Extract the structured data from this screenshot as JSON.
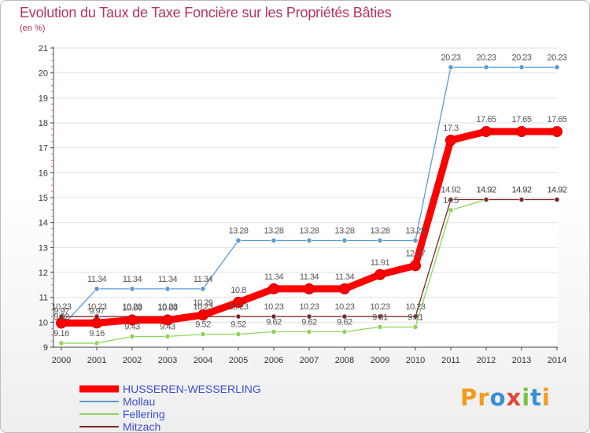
{
  "chart_data": {
    "type": "line",
    "title": "Evolution du Taux de Taxe Foncière sur les Propriétés Bâties",
    "unit_label": "(en %)",
    "x": [
      "2000",
      "2001",
      "2002",
      "2003",
      "2004",
      "2005",
      "2006",
      "2007",
      "2008",
      "2009",
      "2010",
      "2011",
      "2012",
      "2013",
      "2014"
    ],
    "ylim": [
      9,
      21
    ],
    "yticks": [
      "9",
      "10",
      "11",
      "12",
      "13",
      "14",
      "15",
      "16",
      "17",
      "18",
      "19",
      "20",
      "21"
    ],
    "series": [
      {
        "name": "HUSSEREN-WESSERLING",
        "color": "#ff0000",
        "values": [
          9.97,
          9.97,
          10.09,
          10.09,
          10.29,
          10.8,
          11.34,
          11.34,
          11.34,
          11.91,
          12.27,
          17.3,
          17.65,
          17.65,
          17.65
        ],
        "labels": [
          "9.97",
          "9.97",
          "10.09",
          "10.09",
          "10.29",
          "10.8",
          "11.34",
          "11.34",
          "11.34",
          "11.91",
          "12.27",
          "17.3",
          "17.65",
          "17.65",
          "17.65"
        ]
      },
      {
        "name": "Mollau",
        "color": "#5b9bd5",
        "values": [
          9.82,
          11.34,
          11.34,
          11.34,
          11.34,
          13.28,
          13.28,
          13.28,
          13.28,
          13.28,
          13.28,
          20.23,
          20.23,
          20.23,
          20.23
        ],
        "labels": [
          "9.82",
          "11.34",
          "11.34",
          "11.34",
          "11.34",
          "13.28",
          "13.28",
          "13.28",
          "13.28",
          "13.28",
          "13.28",
          "20.23",
          "20.23",
          "20.23",
          "20.23"
        ]
      },
      {
        "name": "Fellering",
        "color": "#8fd45a",
        "values": [
          9.16,
          9.16,
          9.43,
          9.43,
          9.52,
          9.52,
          9.62,
          9.62,
          9.62,
          9.81,
          9.81,
          14.5,
          14.92,
          14.92,
          14.92
        ],
        "labels": [
          "9.16",
          "9.16",
          "9.43",
          "9.43",
          "9.52",
          "9.52",
          "9.62",
          "9.62",
          "9.62",
          "9.81",
          "9.81",
          "14.5",
          "14.92",
          "14.92",
          "14.92"
        ]
      },
      {
        "name": "Mitzach",
        "color": "#7a2a2a",
        "values": [
          10.23,
          10.23,
          10.23,
          10.23,
          10.23,
          10.23,
          10.23,
          10.23,
          10.23,
          10.23,
          10.23,
          14.92,
          14.92,
          14.92,
          14.92
        ],
        "labels": [
          "10.23",
          "10.23",
          "10.23",
          "10.23",
          "10.23",
          "10.23",
          "10.23",
          "10.23",
          "10.23",
          "10.23",
          "10.23",
          "14.92",
          "14.92",
          "14.92",
          "14.92"
        ]
      }
    ],
    "legend_position": "bottom-left"
  },
  "logo": {
    "p1": "Pr",
    "p2": "o",
    "p3": "x",
    "p4": "i",
    "p5": "t",
    "p6": "i"
  }
}
